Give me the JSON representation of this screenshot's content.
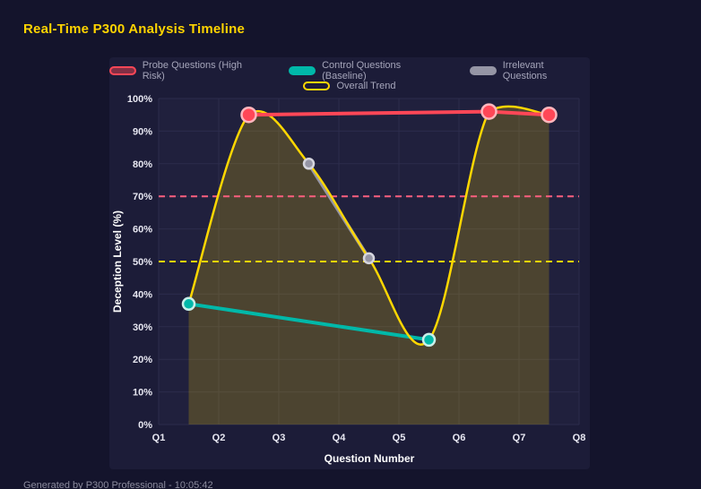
{
  "page": {
    "title": "Real-Time P300 Analysis Timeline",
    "footer": "Generated by P300 Professional - 10:05:42"
  },
  "chart_data": {
    "type": "line",
    "title": "Real-Time P300 Analysis Timeline",
    "xlabel": "Question Number",
    "ylabel": "Deception Level (%)",
    "x_ticks": [
      "Q1",
      "Q2",
      "Q3",
      "Q4",
      "Q5",
      "Q6",
      "Q7",
      "Q8"
    ],
    "x_range": [
      1,
      8
    ],
    "y_ticks": [
      "0%",
      "10%",
      "20%",
      "30%",
      "40%",
      "50%",
      "60%",
      "70%",
      "80%",
      "90%",
      "100%"
    ],
    "y_range": [
      0,
      100
    ],
    "grid": true,
    "legend_position": "top",
    "legend_rows": [
      3,
      1
    ],
    "series": [
      {
        "name": "Probe Questions (High Risk)",
        "color": "#ff4757",
        "ring": "#ffb6bd",
        "marker_radius": 8,
        "line_width": 4,
        "swatch_fill": "rgba(255,71,87,0.45)",
        "points": [
          [
            2.5,
            95
          ],
          [
            6.5,
            96
          ],
          [
            7.5,
            95
          ]
        ]
      },
      {
        "name": "Control Questions (Baseline)",
        "color": "#00b8a9",
        "ring": "#c9efe9",
        "marker_radius": 6.5,
        "line_width": 4,
        "swatch_fill": "#00b8a9",
        "points": [
          [
            1.5,
            37
          ],
          [
            5.5,
            26
          ]
        ]
      },
      {
        "name": "Irrelevant Questions",
        "color": "#9595a5",
        "ring": "#d6d6de",
        "marker_radius": 5.5,
        "line_width": 4,
        "swatch_fill": "#9595a5",
        "points": [
          [
            3.5,
            80
          ],
          [
            4.5,
            51
          ]
        ]
      },
      {
        "name": "Overall Trend",
        "color": "#ffd700",
        "ring": "#ffd700",
        "marker_radius": 0,
        "line_width": 2.5,
        "smooth": true,
        "area_fill": "rgba(255,215,0,0.20)",
        "swatch_fill": "rgba(255,215,0,0)",
        "points": [
          [
            1.5,
            37
          ],
          [
            2.5,
            95
          ],
          [
            3.5,
            80
          ],
          [
            4.5,
            51
          ],
          [
            5.5,
            26
          ],
          [
            6.5,
            96
          ],
          [
            7.5,
            95
          ]
        ]
      }
    ],
    "thresholds": [
      {
        "value": 70,
        "color": "#ff5f7e",
        "dash": "7 5"
      },
      {
        "value": 50,
        "color": "#ffd700",
        "dash": "7 5"
      }
    ]
  }
}
